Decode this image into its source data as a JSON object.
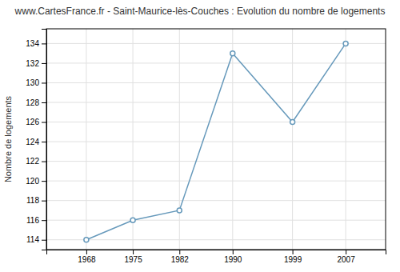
{
  "chart_data": {
    "type": "line",
    "title": "www.CartesFrance.fr - Saint-Maurice-lès-Couches : Evolution du nombre de logements",
    "y_label": "Nombre de logements",
    "x": [
      1968,
      1975,
      1982,
      1990,
      1999,
      2007
    ],
    "values": [
      114,
      116,
      117,
      133,
      126,
      134
    ],
    "xlim": [
      1962,
      2013
    ],
    "ylim": [
      113.0,
      135.5
    ],
    "xticks": [
      1968,
      1975,
      1982,
      1990,
      1999,
      2007
    ],
    "yticks": [
      114,
      116,
      118,
      120,
      122,
      124,
      126,
      128,
      130,
      132,
      134
    ],
    "color": "#6699bb",
    "marker": "circle",
    "grid": true
  }
}
